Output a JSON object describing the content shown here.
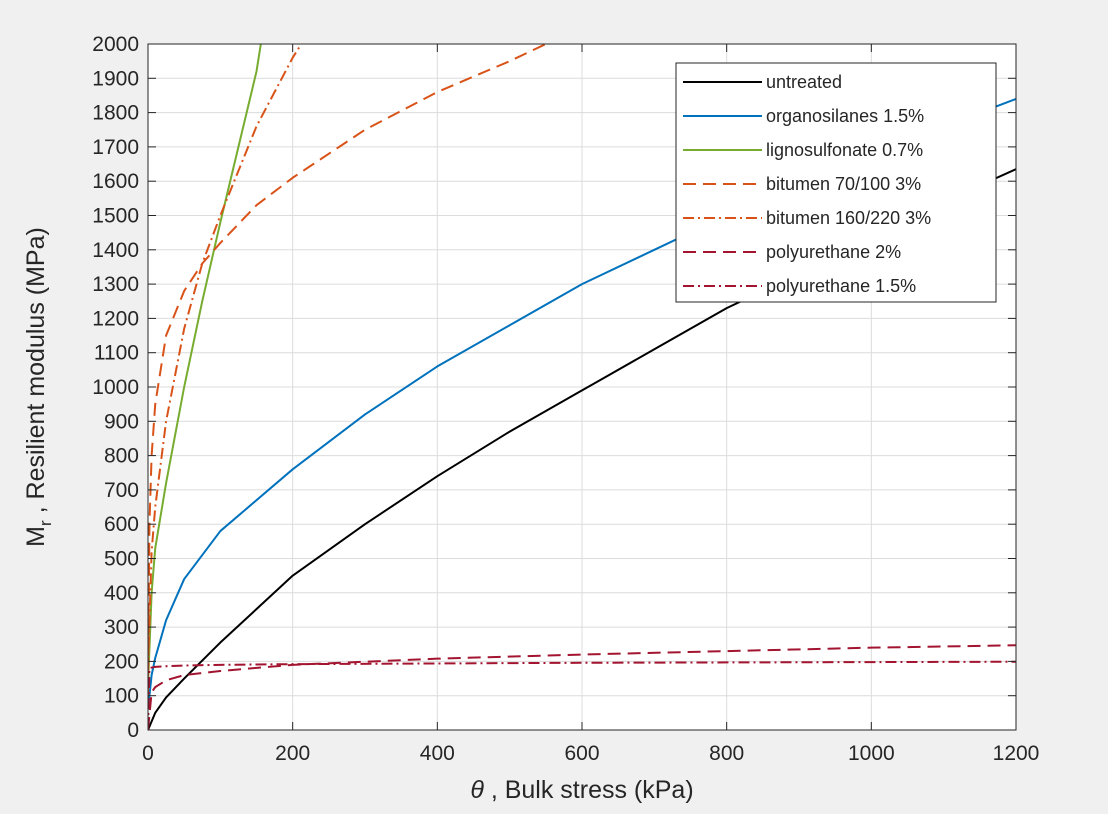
{
  "chart_data": {
    "type": "line",
    "title": "",
    "xlabel": "θ , Bulk stress  (kPa)",
    "xlabel_symbol": "θ",
    "xlabel_text": " , Bulk stress  (kPa)",
    "ylabel": "M_r , Resilient modulus (MPa)",
    "ylabel_main": "M",
    "ylabel_sub": "r",
    "ylabel_rest": " , Resilient modulus (MPa)",
    "xlim": [
      0,
      1200
    ],
    "ylim": [
      0,
      2000
    ],
    "xticks": [
      0,
      200,
      400,
      600,
      800,
      1000,
      1200
    ],
    "yticks": [
      0,
      100,
      200,
      300,
      400,
      500,
      600,
      700,
      800,
      900,
      1000,
      1100,
      1200,
      1300,
      1400,
      1500,
      1600,
      1700,
      1800,
      1900,
      2000
    ],
    "grid": true,
    "legend_position": "top-right",
    "series": [
      {
        "name": "untreated",
        "color": "#000000",
        "dash": "solid",
        "x": [
          0,
          10,
          25,
          50,
          100,
          200,
          300,
          400,
          500,
          600,
          700,
          800,
          900,
          1000,
          1100,
          1200
        ],
        "y": [
          0,
          50,
          95,
          150,
          255,
          450,
          600,
          740,
          870,
          990,
          1110,
          1230,
          1330,
          1440,
          1540,
          1635
        ]
      },
      {
        "name": "organosilanes 1.5%",
        "color": "#0072bd",
        "dash": "solid",
        "x": [
          0,
          5,
          10,
          25,
          50,
          100,
          200,
          300,
          400,
          500,
          600,
          700,
          800,
          900,
          1000,
          1100,
          1200
        ],
        "y": [
          60,
          160,
          210,
          320,
          440,
          580,
          760,
          920,
          1060,
          1180,
          1300,
          1400,
          1500,
          1590,
          1680,
          1760,
          1840
        ]
      },
      {
        "name": "lignosulfonate 0.7%",
        "color": "#77ac30",
        "dash": "solid",
        "x": [
          0,
          5,
          10,
          25,
          50,
          75,
          100,
          125,
          150,
          156
        ],
        "y": [
          130,
          400,
          530,
          720,
          1000,
          1250,
          1480,
          1700,
          1920,
          2000
        ]
      },
      {
        "name": "bitumen 70/100 3%",
        "color": "#d95319",
        "dash": "dash",
        "x": [
          0,
          2,
          5,
          10,
          25,
          50,
          75,
          100,
          150,
          200,
          300,
          400,
          500,
          550
        ],
        "y": [
          100,
          600,
          800,
          950,
          1150,
          1280,
          1360,
          1420,
          1530,
          1610,
          1750,
          1860,
          1950,
          2000
        ]
      },
      {
        "name": "bitumen 160/220 3%",
        "color": "#d95319",
        "dash": "dashdot",
        "x": [
          0,
          5,
          10,
          25,
          50,
          75,
          100,
          150,
          200,
          212
        ],
        "y": [
          180,
          520,
          650,
          900,
          1170,
          1360,
          1500,
          1760,
          1960,
          2000
        ]
      },
      {
        "name": "polyurethane 2%",
        "color": "#a2142f",
        "dash": "dash",
        "x": [
          0,
          5,
          10,
          25,
          50,
          100,
          200,
          400,
          600,
          800,
          1000,
          1200
        ],
        "y": [
          0,
          110,
          125,
          145,
          160,
          172,
          190,
          208,
          220,
          230,
          240,
          247
        ]
      },
      {
        "name": "polyurethane 1.5%",
        "color": "#a2142f",
        "dash": "dashdot",
        "x": [
          0,
          2,
          5,
          10,
          25,
          50,
          100,
          200,
          400,
          600,
          800,
          1000,
          1200
        ],
        "y": [
          0,
          180,
          182,
          184,
          186,
          188,
          190,
          192,
          194,
          196,
          197,
          198,
          199
        ]
      }
    ]
  }
}
